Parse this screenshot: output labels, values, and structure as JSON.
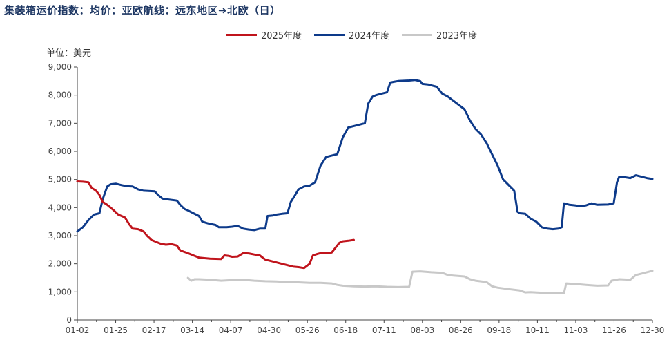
{
  "title": "集装箱运价指数：均价：亚欧航线：远东地区➜北欧（日）",
  "unit_label": "单位：美元",
  "colors": {
    "series_2025": "#c0141c",
    "series_2024": "#0d3a8a",
    "series_2023": "#c8c8c8",
    "axis": "#444444"
  },
  "chart_data": {
    "type": "line",
    "title": "集装箱运价指数：均价：亚欧航线：远东地区➜北欧（日）",
    "ylabel": "单位：美元",
    "xlabel": "",
    "ylim": [
      0,
      9000
    ],
    "y_ticks": [
      "0",
      "1,000",
      "2,000",
      "3,000",
      "4,000",
      "5,000",
      "6,000",
      "7,000",
      "8,000",
      "9,000"
    ],
    "x_ticks": [
      "01-02",
      "01-25",
      "02-17",
      "03-14",
      "04-07",
      "04-30",
      "05-26",
      "06-18",
      "07-11",
      "08-03",
      "08-26",
      "09-18",
      "10-11",
      "11-03",
      "11-26",
      "12-30"
    ],
    "x_unit": "week index (0 = 01-02, 52 = 12-30)",
    "legend_position": "top",
    "grid": false,
    "series": [
      {
        "name": "2025年度",
        "points": [
          [
            0,
            4930
          ],
          [
            0.5,
            4920
          ],
          [
            1,
            4900
          ],
          [
            1.3,
            4700
          ],
          [
            1.7,
            4600
          ],
          [
            2,
            4450
          ],
          [
            2.3,
            4200
          ],
          [
            2.7,
            4100
          ],
          [
            3,
            4000
          ],
          [
            3.3,
            3900
          ],
          [
            3.7,
            3750
          ],
          [
            4,
            3700
          ],
          [
            4.3,
            3650
          ],
          [
            4.7,
            3400
          ],
          [
            5,
            3250
          ],
          [
            5.5,
            3230
          ],
          [
            6,
            3150
          ],
          [
            6.3,
            3000
          ],
          [
            6.7,
            2850
          ],
          [
            7,
            2800
          ],
          [
            7.5,
            2720
          ],
          [
            8,
            2680
          ],
          [
            8.5,
            2700
          ],
          [
            9,
            2650
          ],
          [
            9.3,
            2480
          ],
          [
            9.7,
            2420
          ],
          [
            10,
            2380
          ],
          [
            10.5,
            2300
          ],
          [
            11,
            2220
          ],
          [
            11.5,
            2200
          ],
          [
            12,
            2180
          ],
          [
            13,
            2170
          ],
          [
            13.3,
            2300
          ],
          [
            13.7,
            2280
          ],
          [
            14,
            2250
          ],
          [
            14.5,
            2260
          ],
          [
            15,
            2380
          ],
          [
            15.5,
            2370
          ],
          [
            16,
            2330
          ],
          [
            16.5,
            2300
          ],
          [
            17,
            2150
          ],
          [
            17.5,
            2100
          ],
          [
            18,
            2050
          ],
          [
            18.5,
            2000
          ],
          [
            19,
            1950
          ],
          [
            19.5,
            1900
          ],
          [
            20,
            1880
          ],
          [
            20.5,
            1850
          ],
          [
            21,
            2000
          ],
          [
            21.3,
            2300
          ],
          [
            21.7,
            2350
          ],
          [
            22,
            2380
          ],
          [
            23,
            2400
          ],
          [
            23.3,
            2550
          ],
          [
            23.7,
            2750
          ],
          [
            24,
            2800
          ],
          [
            24.5,
            2820
          ],
          [
            25,
            2850
          ]
        ]
      },
      {
        "name": "2024年度",
        "points": [
          [
            0,
            3150
          ],
          [
            0.5,
            3300
          ],
          [
            1,
            3550
          ],
          [
            1.5,
            3750
          ],
          [
            2,
            3800
          ],
          [
            2.3,
            4300
          ],
          [
            2.7,
            4750
          ],
          [
            3,
            4830
          ],
          [
            3.5,
            4850
          ],
          [
            4,
            4800
          ],
          [
            4.5,
            4760
          ],
          [
            5,
            4750
          ],
          [
            5.5,
            4650
          ],
          [
            6,
            4600
          ],
          [
            7,
            4580
          ],
          [
            7.3,
            4450
          ],
          [
            7.7,
            4320
          ],
          [
            8,
            4300
          ],
          [
            9,
            4250
          ],
          [
            9.3,
            4100
          ],
          [
            9.7,
            3950
          ],
          [
            10,
            3900
          ],
          [
            10.5,
            3800
          ],
          [
            11,
            3700
          ],
          [
            11.3,
            3500
          ],
          [
            11.7,
            3450
          ],
          [
            12,
            3420
          ],
          [
            12.5,
            3380
          ],
          [
            12.8,
            3300
          ],
          [
            13.5,
            3300
          ],
          [
            14,
            3320
          ],
          [
            14.5,
            3350
          ],
          [
            15,
            3250
          ],
          [
            15.5,
            3220
          ],
          [
            16,
            3200
          ],
          [
            16.5,
            3250
          ],
          [
            17,
            3250
          ],
          [
            17.2,
            3700
          ],
          [
            17.7,
            3720
          ],
          [
            18,
            3750
          ],
          [
            18.5,
            3780
          ],
          [
            19,
            3800
          ],
          [
            19.3,
            4200
          ],
          [
            19.7,
            4450
          ],
          [
            20,
            4650
          ],
          [
            20.5,
            4750
          ],
          [
            21,
            4780
          ],
          [
            21.5,
            4900
          ],
          [
            22,
            5500
          ],
          [
            22.5,
            5800
          ],
          [
            23,
            5850
          ],
          [
            23.5,
            5900
          ],
          [
            24,
            6500
          ],
          [
            24.5,
            6850
          ],
          [
            25,
            6900
          ],
          [
            25.5,
            6950
          ],
          [
            26,
            7000
          ],
          [
            26.3,
            7700
          ],
          [
            26.7,
            7950
          ],
          [
            27,
            8000
          ],
          [
            27.5,
            8050
          ],
          [
            28,
            8100
          ],
          [
            28.3,
            8450
          ],
          [
            28.7,
            8480
          ],
          [
            29,
            8500
          ],
          [
            30,
            8520
          ],
          [
            30.5,
            8540
          ],
          [
            31,
            8500
          ],
          [
            31.2,
            8400
          ],
          [
            31.7,
            8380
          ],
          [
            32,
            8350
          ],
          [
            32.5,
            8300
          ],
          [
            33,
            8050
          ],
          [
            33.5,
            7950
          ],
          [
            34,
            7800
          ],
          [
            34.5,
            7650
          ],
          [
            35,
            7500
          ],
          [
            35.5,
            7100
          ],
          [
            36,
            6800
          ],
          [
            36.5,
            6600
          ],
          [
            37,
            6300
          ],
          [
            37.5,
            5900
          ],
          [
            38,
            5500
          ],
          [
            38.5,
            5000
          ],
          [
            39,
            4800
          ],
          [
            39.5,
            4600
          ],
          [
            39.8,
            3850
          ],
          [
            40,
            3800
          ],
          [
            40.5,
            3780
          ],
          [
            41,
            3600
          ],
          [
            41.5,
            3500
          ],
          [
            42,
            3300
          ],
          [
            42.5,
            3250
          ],
          [
            43,
            3230
          ],
          [
            43.5,
            3250
          ],
          [
            43.8,
            3300
          ],
          [
            44,
            4150
          ],
          [
            44.5,
            4100
          ],
          [
            45,
            4080
          ],
          [
            45.5,
            4050
          ],
          [
            46,
            4080
          ],
          [
            46.5,
            4150
          ],
          [
            47,
            4100
          ],
          [
            48,
            4110
          ],
          [
            48.5,
            4150
          ],
          [
            48.8,
            4900
          ],
          [
            49,
            5100
          ],
          [
            49.5,
            5080
          ],
          [
            50,
            5050
          ],
          [
            50.5,
            5150
          ],
          [
            51,
            5100
          ],
          [
            51.5,
            5050
          ],
          [
            52,
            5020
          ]
        ]
      },
      {
        "name": "2023年度",
        "points": [
          [
            10,
            1500
          ],
          [
            10.3,
            1400
          ],
          [
            10.6,
            1450
          ],
          [
            11,
            1450
          ],
          [
            12,
            1430
          ],
          [
            13,
            1400
          ],
          [
            14,
            1420
          ],
          [
            15,
            1430
          ],
          [
            16,
            1400
          ],
          [
            17,
            1380
          ],
          [
            18,
            1370
          ],
          [
            19,
            1350
          ],
          [
            20,
            1340
          ],
          [
            21,
            1320
          ],
          [
            22,
            1320
          ],
          [
            23,
            1300
          ],
          [
            23.5,
            1250
          ],
          [
            24,
            1220
          ],
          [
            25,
            1200
          ],
          [
            26,
            1190
          ],
          [
            27,
            1200
          ],
          [
            28,
            1180
          ],
          [
            29,
            1170
          ],
          [
            30,
            1180
          ],
          [
            30.3,
            1720
          ],
          [
            31,
            1730
          ],
          [
            32,
            1700
          ],
          [
            33,
            1680
          ],
          [
            33.5,
            1600
          ],
          [
            34,
            1580
          ],
          [
            35,
            1550
          ],
          [
            35.5,
            1450
          ],
          [
            36,
            1400
          ],
          [
            37,
            1350
          ],
          [
            37.5,
            1200
          ],
          [
            38,
            1150
          ],
          [
            39,
            1100
          ],
          [
            40,
            1050
          ],
          [
            40.5,
            980
          ],
          [
            41,
            990
          ],
          [
            42,
            970
          ],
          [
            43,
            960
          ],
          [
            44,
            950
          ],
          [
            44.2,
            1300
          ],
          [
            45,
            1280
          ],
          [
            46,
            1250
          ],
          [
            47,
            1220
          ],
          [
            48,
            1230
          ],
          [
            48.3,
            1400
          ],
          [
            49,
            1450
          ],
          [
            50,
            1430
          ],
          [
            50.5,
            1600
          ],
          [
            51,
            1650
          ],
          [
            52,
            1750
          ]
        ]
      }
    ]
  }
}
